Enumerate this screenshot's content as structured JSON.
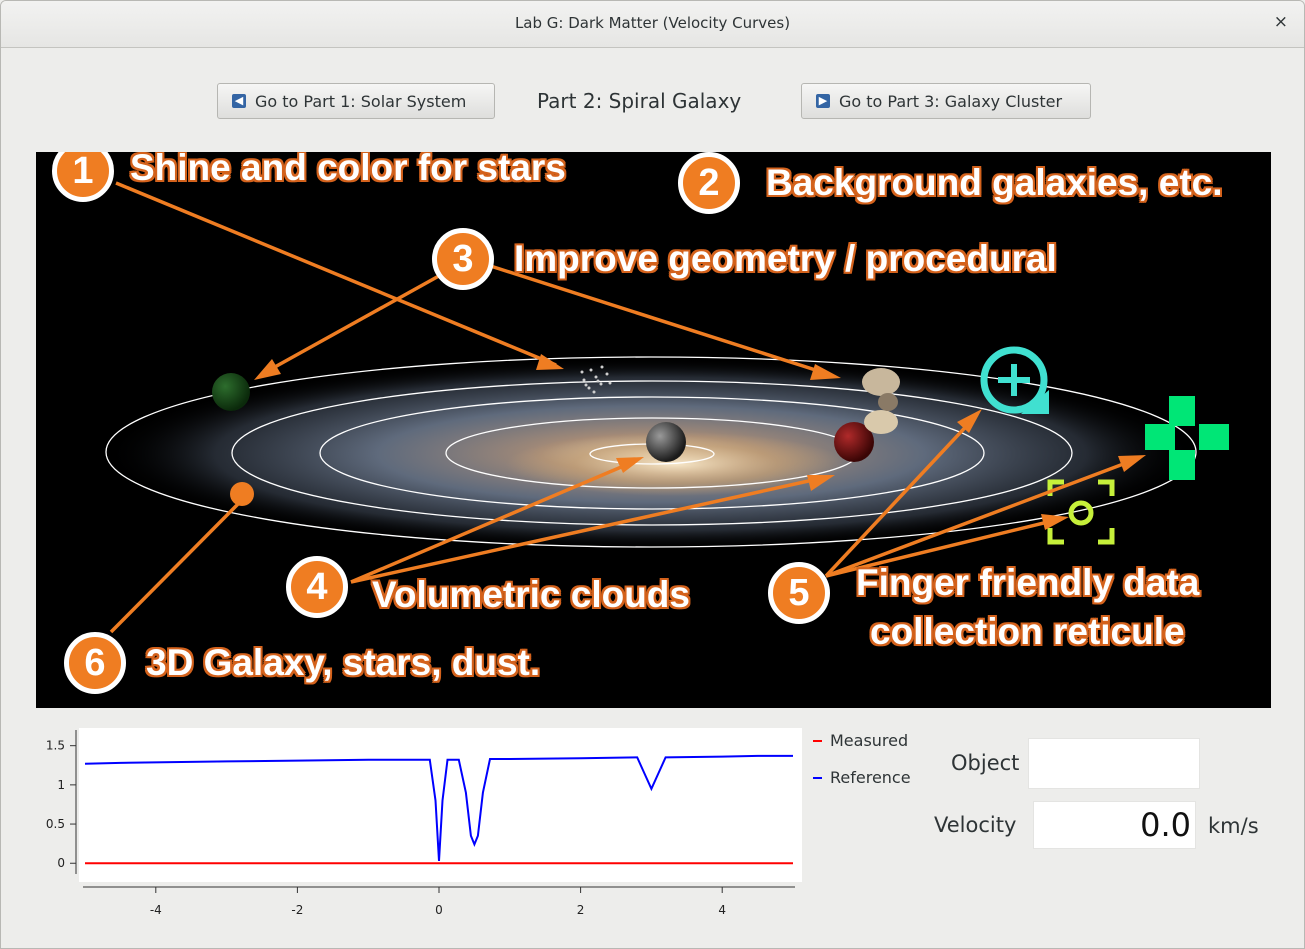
{
  "window": {
    "title": "Lab G: Dark Matter (Velocity Curves)",
    "close_glyph": "×"
  },
  "nav": {
    "prev_label": "Go to Part 1: Solar System",
    "part_label": "Part 2: Spiral Galaxy",
    "next_label": "Go to Part 3: Galaxy Cluster",
    "prev_icon": "arrow-left-icon",
    "next_icon": "arrow-right-icon"
  },
  "annotations": {
    "a1": {
      "num": "1",
      "text": "Shine and color for stars"
    },
    "a2": {
      "num": "2",
      "text": "Background galaxies, etc."
    },
    "a3": {
      "num": "3",
      "text": "Improve geometry / procedural"
    },
    "a4": {
      "num": "4",
      "text": "Volumetric clouds"
    },
    "a5": {
      "num": "5",
      "text": "Finger friendly data",
      "text2": "collection reticule"
    },
    "a6": {
      "num": "6",
      "text": "3D Galaxy, stars, dust."
    }
  },
  "colors": {
    "annotation": "#ef7d22",
    "measured": "#ff0000",
    "reference": "#0000ff",
    "zoom_reticle": "#40e0d0",
    "move_control": "#00e676",
    "target_reticle": "#c6f03a"
  },
  "chart_data": {
    "type": "line",
    "xlim": [
      -5,
      5
    ],
    "ylim": [
      -0.15,
      1.7
    ],
    "xticks": [
      "-4",
      "-2",
      "0",
      "2",
      "4"
    ],
    "yticks": [
      "0",
      "0.5",
      "1",
      "1.5"
    ],
    "series": [
      {
        "name": "Measured",
        "x": [
          -5,
          5
        ],
        "y": [
          0,
          0
        ]
      },
      {
        "name": "Reference",
        "x": [
          -5,
          -4.5,
          -3,
          -2,
          -1,
          -0.13,
          -0.05,
          0,
          0.05,
          0.12,
          0.28,
          0.38,
          0.45,
          0.5,
          0.55,
          0.62,
          0.72,
          1,
          2,
          2.8,
          2.9,
          3,
          3.1,
          3.2,
          4,
          4.5,
          5
        ],
        "y": [
          1.27,
          1.28,
          1.3,
          1.31,
          1.32,
          1.32,
          0.8,
          0.03,
          0.8,
          1.32,
          1.32,
          0.9,
          0.35,
          0.24,
          0.35,
          0.9,
          1.33,
          1.33,
          1.34,
          1.35,
          1.15,
          0.95,
          1.15,
          1.35,
          1.36,
          1.37,
          1.37
        ]
      }
    ]
  },
  "data_panel": {
    "object_label": "Object",
    "object_value": "",
    "velocity_label": "Velocity",
    "velocity_value": "0.0",
    "velocity_unit": "km/s"
  }
}
